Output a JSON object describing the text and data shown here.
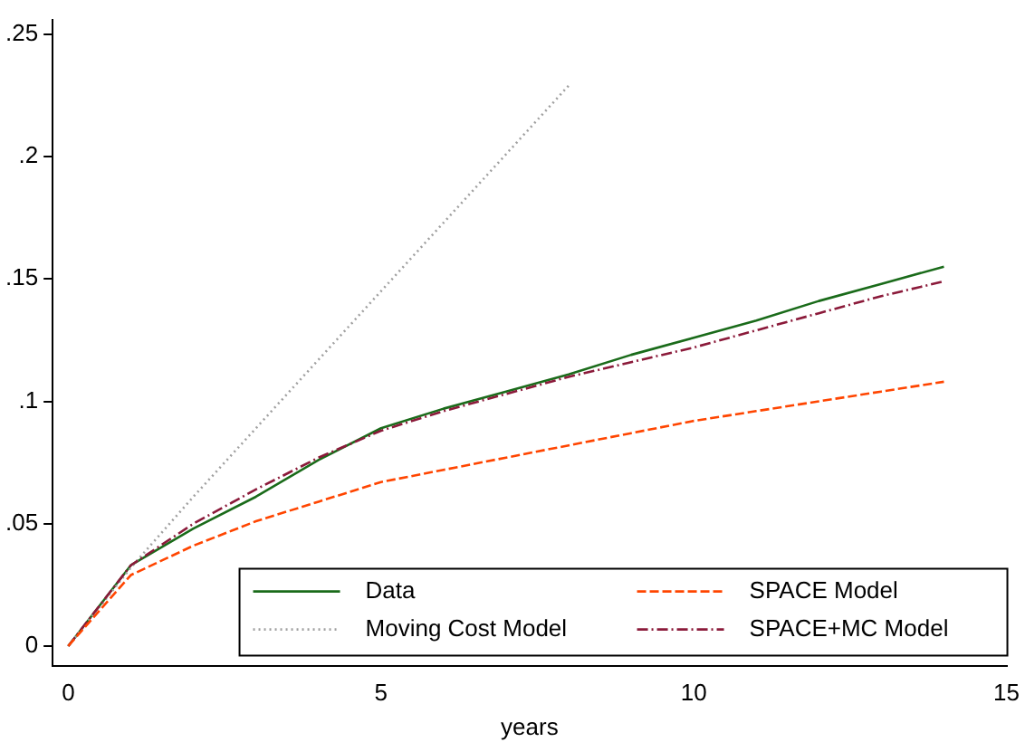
{
  "chart_data": {
    "type": "line",
    "xlabel": "years",
    "xlim": [
      -0.25,
      15
    ],
    "xticks": [
      0,
      5,
      10,
      15
    ],
    "ylim": [
      -0.008,
      0.256
    ],
    "yticks": [
      {
        "value": 0,
        "label": "0"
      },
      {
        "value": 0.05,
        "label": ".05"
      },
      {
        "value": 0.1,
        "label": ".1"
      },
      {
        "value": 0.15,
        "label": ".15"
      },
      {
        "value": 0.2,
        "label": ".2"
      },
      {
        "value": 0.25,
        "label": ".25"
      }
    ],
    "grid": false,
    "legend": "bottom right",
    "marker": "none",
    "series": [
      {
        "name": "Data",
        "color": "#1a6b1a",
        "line_style": "solid",
        "x": [
          0,
          1,
          2,
          3,
          4,
          5,
          6,
          7,
          8,
          9,
          10,
          11,
          12,
          13,
          14
        ],
        "values": [
          0,
          0.033,
          0.048,
          0.061,
          0.076,
          0.089,
          0.097,
          0.104,
          0.111,
          0.119,
          0.126,
          0.133,
          0.141,
          0.148,
          0.155
        ]
      },
      {
        "name": "Moving Cost Model",
        "color": "#a0a0a0",
        "line_style": "dotted",
        "x": [
          0,
          1,
          2,
          3,
          4,
          5,
          6,
          7,
          8
        ],
        "values": [
          0,
          0.032,
          0.061,
          0.089,
          0.117,
          0.145,
          0.173,
          0.201,
          0.229
        ]
      },
      {
        "name": "SPACE Model",
        "color": "#ff4500",
        "line_style": "dashed",
        "x": [
          0,
          1,
          2,
          3,
          4,
          5,
          6,
          7,
          8,
          9,
          10,
          11,
          12,
          13,
          14
        ],
        "values": [
          0,
          0.029,
          0.041,
          0.051,
          0.059,
          0.067,
          0.072,
          0.077,
          0.082,
          0.087,
          0.092,
          0.096,
          0.1,
          0.104,
          0.108
        ]
      },
      {
        "name": "SPACE+MC Model",
        "color": "#8b1a3a",
        "line_style": "dashdot",
        "x": [
          0,
          1,
          2,
          3,
          4,
          5,
          6,
          7,
          8,
          9,
          10,
          11,
          12,
          13,
          14
        ],
        "values": [
          0,
          0.033,
          0.05,
          0.064,
          0.077,
          0.088,
          0.096,
          0.103,
          0.11,
          0.116,
          0.122,
          0.129,
          0.136,
          0.143,
          0.149
        ]
      }
    ]
  }
}
